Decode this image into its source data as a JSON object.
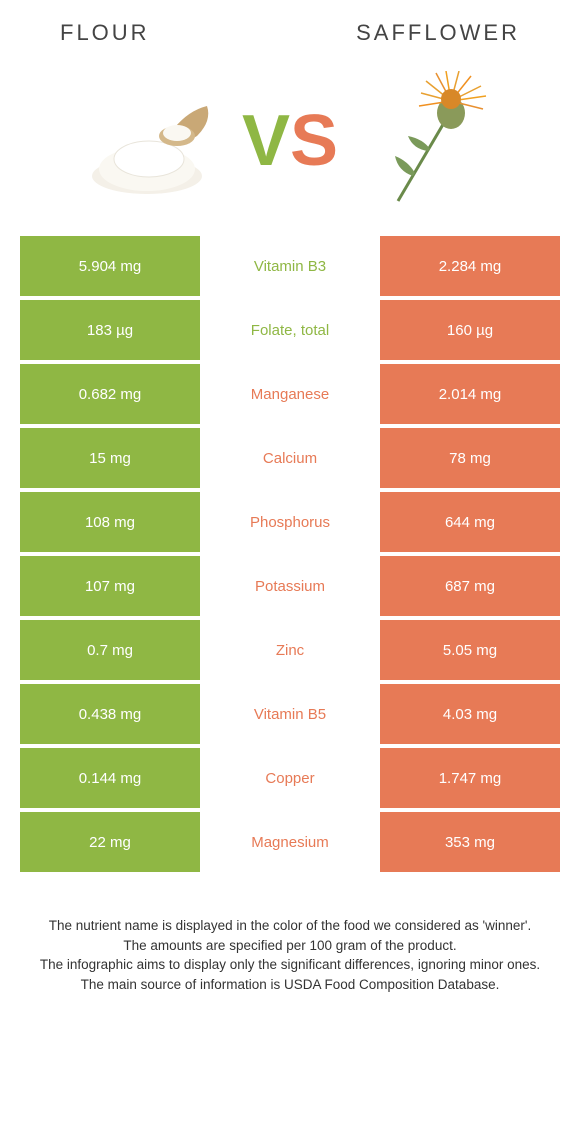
{
  "header": {
    "left_title": "FLOUR",
    "right_title": "SAFFLOWER"
  },
  "vs": {
    "v": "V",
    "s": "S"
  },
  "colors": {
    "green": "#8fb744",
    "orange": "#e77a56",
    "text": "#444444",
    "footer_text": "#333333",
    "bg": "#ffffff"
  },
  "table": {
    "rows": [
      {
        "left": "5.904 mg",
        "mid": "Vitamin B3",
        "right": "2.284 mg",
        "winner": "green"
      },
      {
        "left": "183 µg",
        "mid": "Folate, total",
        "right": "160 µg",
        "winner": "green"
      },
      {
        "left": "0.682 mg",
        "mid": "Manganese",
        "right": "2.014 mg",
        "winner": "orange"
      },
      {
        "left": "15 mg",
        "mid": "Calcium",
        "right": "78 mg",
        "winner": "orange"
      },
      {
        "left": "108 mg",
        "mid": "Phosphorus",
        "right": "644 mg",
        "winner": "orange"
      },
      {
        "left": "107 mg",
        "mid": "Potassium",
        "right": "687 mg",
        "winner": "orange"
      },
      {
        "left": "0.7 mg",
        "mid": "Zinc",
        "right": "5.05 mg",
        "winner": "orange"
      },
      {
        "left": "0.438 mg",
        "mid": "Vitamin B5",
        "right": "4.03 mg",
        "winner": "orange"
      },
      {
        "left": "0.144 mg",
        "mid": "Copper",
        "right": "1.747 mg",
        "winner": "orange"
      },
      {
        "left": "22 mg",
        "mid": "Magnesium",
        "right": "353 mg",
        "winner": "orange"
      }
    ]
  },
  "footer": {
    "line1": "The nutrient name is displayed in the color of the food we considered as 'winner'.",
    "line2": "The amounts are specified per 100 gram of the product.",
    "line3": "The infographic aims to display only the significant differences, ignoring minor ones.",
    "line4": "The main source of information is USDA Food Composition Database."
  }
}
